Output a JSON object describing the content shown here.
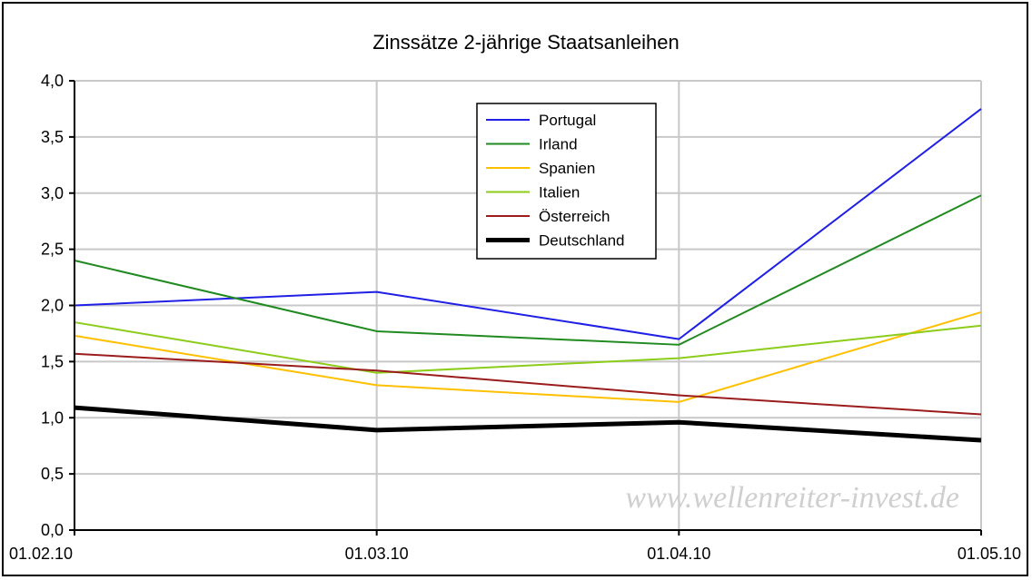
{
  "chart_data": {
    "type": "line",
    "title": "Zinssätze 2-jährige Staatsanleihen",
    "xlabel": "",
    "ylabel": "",
    "categories": [
      "01.02.10",
      "01.03.10",
      "01.04.10",
      "01.05.10"
    ],
    "ylim": [
      0,
      4
    ],
    "yticks": [
      "0,0",
      "0,5",
      "1,0",
      "1,5",
      "2,0",
      "2,5",
      "3,0",
      "3,5",
      "4,0"
    ],
    "grid": true,
    "legend_position": "top-center",
    "watermark": "www.wellenreiter-invest.de",
    "series": [
      {
        "name": "Portugal",
        "color": "#1f1fe6",
        "width": 2,
        "values": [
          2.0,
          2.12,
          1.7,
          3.75
        ]
      },
      {
        "name": "Irland",
        "color": "#208a20",
        "width": 2,
        "values": [
          2.4,
          1.77,
          1.65,
          2.98
        ]
      },
      {
        "name": "Spanien",
        "color": "#ffc000",
        "width": 2,
        "values": [
          1.73,
          1.29,
          1.14,
          1.94
        ]
      },
      {
        "name": "Italien",
        "color": "#8ccc1a",
        "width": 2,
        "values": [
          1.85,
          1.4,
          1.53,
          1.82
        ]
      },
      {
        "name": "Österreich",
        "color": "#9b1c1c",
        "width": 2,
        "values": [
          1.57,
          1.42,
          1.2,
          1.03
        ]
      },
      {
        "name": "Deutschland",
        "color": "#000000",
        "width": 5,
        "values": [
          1.09,
          0.89,
          0.96,
          0.8
        ]
      }
    ]
  }
}
